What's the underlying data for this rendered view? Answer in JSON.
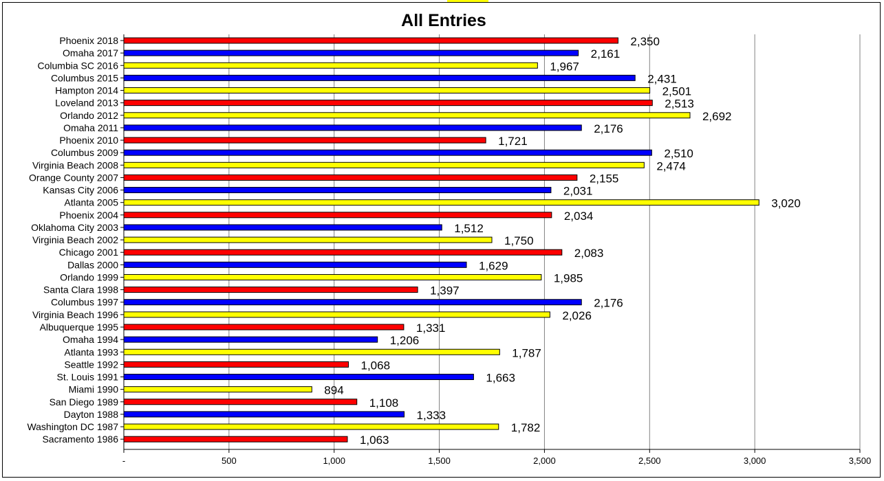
{
  "chart_data": {
    "type": "bar",
    "orientation": "horizontal",
    "title": "All Entries",
    "xlabel": "",
    "ylabel": "",
    "xlim": [
      0,
      3500
    ],
    "ticks": [
      0,
      500,
      1000,
      1500,
      2000,
      2500,
      3000,
      3500
    ],
    "tick_labels": [
      "-",
      "500",
      "1,000",
      "1,500",
      "2,000",
      "2,500",
      "3,000",
      "3,500"
    ],
    "grid": "vertical",
    "legend": "none",
    "colors": {
      "red": "#ff0000",
      "blue": "#0000ff",
      "yellow": "#ffff00",
      "stroke": "#000000"
    },
    "bars": [
      {
        "category": "Phoenix 2018",
        "value": 2350,
        "label": "2,350",
        "color": "red"
      },
      {
        "category": "Omaha 2017",
        "value": 2161,
        "label": "2,161",
        "color": "blue"
      },
      {
        "category": "Columbia SC 2016",
        "value": 1967,
        "label": "1,967",
        "color": "yellow"
      },
      {
        "category": "Columbus 2015",
        "value": 2431,
        "label": "2,431",
        "color": "blue"
      },
      {
        "category": "Hampton 2014",
        "value": 2501,
        "label": "2,501",
        "color": "yellow"
      },
      {
        "category": "Loveland 2013",
        "value": 2513,
        "label": "2,513",
        "color": "red"
      },
      {
        "category": "Orlando 2012",
        "value": 2692,
        "label": "2,692",
        "color": "yellow"
      },
      {
        "category": "Omaha 2011",
        "value": 2176,
        "label": "2,176",
        "color": "blue"
      },
      {
        "category": "Phoenix 2010",
        "value": 1721,
        "label": "1,721",
        "color": "red"
      },
      {
        "category": "Columbus 2009",
        "value": 2510,
        "label": "2,510",
        "color": "blue"
      },
      {
        "category": "Virginia Beach 2008",
        "value": 2474,
        "label": "2,474",
        "color": "yellow"
      },
      {
        "category": "Orange County 2007",
        "value": 2155,
        "label": "2,155",
        "color": "red"
      },
      {
        "category": "Kansas City 2006",
        "value": 2031,
        "label": "2,031",
        "color": "blue"
      },
      {
        "category": "Atlanta 2005",
        "value": 3020,
        "label": "3,020",
        "color": "yellow"
      },
      {
        "category": "Phoenix 2004",
        "value": 2034,
        "label": "2,034",
        "color": "red"
      },
      {
        "category": "Oklahoma City 2003",
        "value": 1512,
        "label": "1,512",
        "color": "blue"
      },
      {
        "category": "Virginia Beach 2002",
        "value": 1750,
        "label": "1,750",
        "color": "yellow"
      },
      {
        "category": "Chicago 2001",
        "value": 2083,
        "label": "2,083",
        "color": "red"
      },
      {
        "category": "Dallas 2000",
        "value": 1629,
        "label": "1,629",
        "color": "blue"
      },
      {
        "category": "Orlando 1999",
        "value": 1985,
        "label": "1,985",
        "color": "yellow"
      },
      {
        "category": "Santa Clara 1998",
        "value": 1397,
        "label": "1,397",
        "color": "red"
      },
      {
        "category": "Columbus 1997",
        "value": 2176,
        "label": "2,176",
        "color": "blue"
      },
      {
        "category": "Virginia Beach 1996",
        "value": 2026,
        "label": "2,026",
        "color": "yellow"
      },
      {
        "category": "Albuquerque 1995",
        "value": 1331,
        "label": "1,331",
        "color": "red"
      },
      {
        "category": "Omaha 1994",
        "value": 1206,
        "label": "1,206",
        "color": "blue"
      },
      {
        "category": "Atlanta 1993",
        "value": 1787,
        "label": "1,787",
        "color": "yellow"
      },
      {
        "category": "Seattle 1992",
        "value": 1068,
        "label": "1,068",
        "color": "red"
      },
      {
        "category": "St. Louis 1991",
        "value": 1663,
        "label": "1,663",
        "color": "blue"
      },
      {
        "category": "Miami 1990",
        "value": 894,
        "label": "894",
        "color": "yellow"
      },
      {
        "category": "San Diego 1989",
        "value": 1108,
        "label": "1,108",
        "color": "red"
      },
      {
        "category": "Dayton 1988",
        "value": 1333,
        "label": "1,333",
        "color": "blue"
      },
      {
        "category": "Washington DC 1987",
        "value": 1782,
        "label": "1,782",
        "color": "yellow"
      },
      {
        "category": "Sacramento 1986",
        "value": 1063,
        "label": "1,063",
        "color": "red"
      }
    ]
  }
}
